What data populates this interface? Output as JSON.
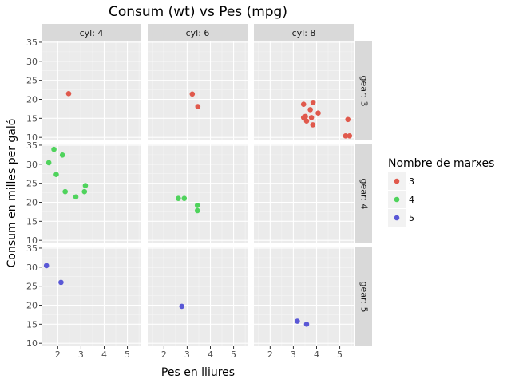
{
  "chart_data": {
    "type": "scatter",
    "title": "Consum (wt) vs Pes (mpg)",
    "xlabel": "Pes en lliures",
    "ylabel": "Consum en milles per galó",
    "xlim": [
      1.3,
      5.6
    ],
    "ylim": [
      9.2,
      35.2
    ],
    "xticks": [
      2,
      3,
      4,
      5
    ],
    "yticks": [
      10,
      15,
      20,
      25,
      30,
      35
    ],
    "grid": true,
    "facet_cols": {
      "variable": "cyl",
      "values": [
        4,
        6,
        8
      ]
    },
    "facet_rows": {
      "variable": "gear",
      "values": [
        3,
        4,
        5
      ]
    },
    "legend": {
      "title": "Nombre de marxes",
      "position": "right",
      "entries": [
        {
          "label": "3",
          "color": "#e0594c"
        },
        {
          "label": "4",
          "color": "#4fd35c"
        },
        {
          "label": "5",
          "color": "#5a58d6"
        }
      ]
    },
    "series": [
      {
        "name": "3",
        "color": "#e0594c",
        "points": [
          {
            "cyl": 4,
            "x": 2.47,
            "y": 21.5
          },
          {
            "cyl": 6,
            "x": 3.22,
            "y": 21.4
          },
          {
            "cyl": 6,
            "x": 3.46,
            "y": 18.1
          },
          {
            "cyl": 8,
            "x": 3.44,
            "y": 18.7
          },
          {
            "cyl": 8,
            "x": 3.57,
            "y": 14.3
          },
          {
            "cyl": 8,
            "x": 4.07,
            "y": 16.4
          },
          {
            "cyl": 8,
            "x": 3.73,
            "y": 17.3
          },
          {
            "cyl": 8,
            "x": 3.78,
            "y": 15.2
          },
          {
            "cyl": 8,
            "x": 5.25,
            "y": 10.4
          },
          {
            "cyl": 8,
            "x": 5.42,
            "y": 10.4
          },
          {
            "cyl": 8,
            "x": 5.35,
            "y": 14.7
          },
          {
            "cyl": 8,
            "x": 3.52,
            "y": 15.5
          },
          {
            "cyl": 8,
            "x": 3.44,
            "y": 15.2
          },
          {
            "cyl": 8,
            "x": 3.84,
            "y": 13.3
          },
          {
            "cyl": 8,
            "x": 3.85,
            "y": 19.2
          }
        ]
      },
      {
        "name": "4",
        "color": "#4fd35c",
        "points": [
          {
            "cyl": 4,
            "x": 2.32,
            "y": 22.8
          },
          {
            "cyl": 4,
            "x": 3.19,
            "y": 24.4
          },
          {
            "cyl": 4,
            "x": 3.15,
            "y": 22.8
          },
          {
            "cyl": 4,
            "x": 2.2,
            "y": 32.4
          },
          {
            "cyl": 4,
            "x": 1.615,
            "y": 30.4
          },
          {
            "cyl": 4,
            "x": 1.835,
            "y": 33.9
          },
          {
            "cyl": 4,
            "x": 1.935,
            "y": 27.3
          },
          {
            "cyl": 4,
            "x": 2.78,
            "y": 21.4
          },
          {
            "cyl": 6,
            "x": 2.62,
            "y": 21.0
          },
          {
            "cyl": 6,
            "x": 2.875,
            "y": 21.0
          },
          {
            "cyl": 6,
            "x": 3.44,
            "y": 19.2
          },
          {
            "cyl": 6,
            "x": 3.44,
            "y": 17.8
          }
        ]
      },
      {
        "name": "5",
        "color": "#5a58d6",
        "points": [
          {
            "cyl": 4,
            "x": 2.14,
            "y": 26.0
          },
          {
            "cyl": 4,
            "x": 1.513,
            "y": 30.4
          },
          {
            "cyl": 6,
            "x": 2.77,
            "y": 19.7
          },
          {
            "cyl": 8,
            "x": 3.17,
            "y": 15.8
          },
          {
            "cyl": 8,
            "x": 3.57,
            "y": 15.0
          }
        ]
      }
    ]
  }
}
